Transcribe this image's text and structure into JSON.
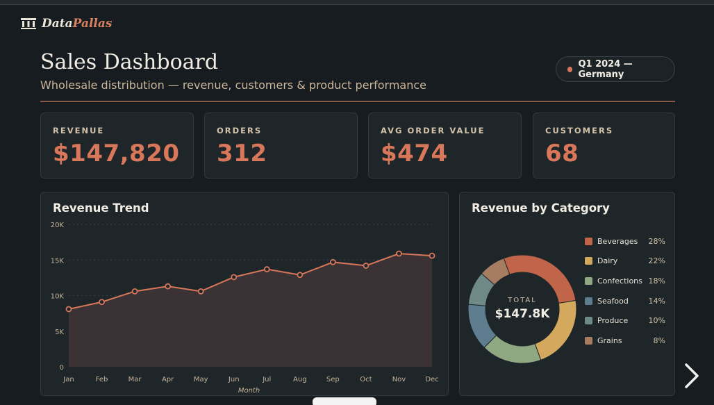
{
  "brand": {
    "name_a": "Data",
    "name_b": "Pallas"
  },
  "header": {
    "title": "Sales Dashboard",
    "subtitle": "Wholesale distribution — revenue, customers & product performance",
    "filter_label": "Q1 2024 — Germany"
  },
  "kpis": [
    {
      "label": "REVENUE",
      "value": "$147,820"
    },
    {
      "label": "ORDERS",
      "value": "312"
    },
    {
      "label": "AVG ORDER VALUE",
      "value": "$474"
    },
    {
      "label": "CUSTOMERS",
      "value": "68"
    }
  ],
  "trend": {
    "title": "Revenue Trend",
    "xlabel": "Month",
    "yticks": [
      "0",
      "5K",
      "10K",
      "15K",
      "20K"
    ]
  },
  "category": {
    "title": "Revenue by Category",
    "total_label": "TOTAL",
    "total_value": "$147.8K"
  },
  "colors": {
    "accent": "#d9775a",
    "background": "#161c1f",
    "panel": "#1e262a"
  },
  "chart_data": [
    {
      "type": "area",
      "title": "Revenue Trend",
      "xlabel": "Month",
      "ylabel": "",
      "categories": [
        "Jan",
        "Feb",
        "Mar",
        "Apr",
        "May",
        "Jun",
        "Jul",
        "Aug",
        "Sep",
        "Oct",
        "Nov",
        "Dec"
      ],
      "values": [
        8100,
        9100,
        10600,
        11300,
        10600,
        12600,
        13700,
        12900,
        14700,
        14200,
        15900,
        15600
      ],
      "ylim": [
        0,
        20000
      ],
      "grid": true
    },
    {
      "type": "pie",
      "title": "Revenue by Category",
      "legend": "right",
      "categories": [
        "Beverages",
        "Dairy",
        "Confections",
        "Seafood",
        "Produce",
        "Grains"
      ],
      "values": [
        28,
        22,
        18,
        14,
        10,
        8
      ],
      "labels": [
        "28%",
        "22%",
        "18%",
        "14%",
        "10%",
        "8%"
      ],
      "colors": [
        "#c0654a",
        "#d4a95e",
        "#8fa882",
        "#5e7d8f",
        "#6f8a86",
        "#a77d62"
      ]
    }
  ]
}
